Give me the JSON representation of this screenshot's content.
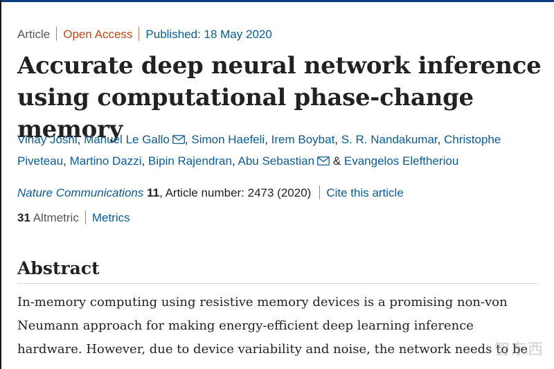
{
  "article_type": "Article",
  "access": "Open Access",
  "published": "Published: 18 May 2020",
  "title": "Accurate deep neural network inference using computational phase-change memory",
  "authors": [
    {
      "name": "Vinay Joshi",
      "mail": false
    },
    {
      "name": "Manuel Le Gallo",
      "mail": true
    },
    {
      "name": "Simon Haefeli",
      "mail": false
    },
    {
      "name": "Irem Boybat",
      "mail": false
    },
    {
      "name": "S. R. Nandakumar",
      "mail": false
    },
    {
      "name": "Christophe Piveteau",
      "mail": false
    },
    {
      "name": "Martino Dazzi",
      "mail": false
    },
    {
      "name": "Bipin Rajendran",
      "mail": false
    },
    {
      "name": "Abu Sebastian",
      "mail": true
    },
    {
      "name": "Evangelos Eleftheriou",
      "mail": false
    }
  ],
  "author_conjunction": "&",
  "journal": {
    "name": "Nature Communications",
    "volume": "11",
    "rest": ", Article number: 2473 (2020)",
    "cite_label": "Cite this article"
  },
  "metrics": {
    "altmetric_count": "31",
    "altmetric_label": "Altmetric",
    "metrics_label": "Metrics"
  },
  "abstract": {
    "heading": "Abstract",
    "lines": [
      "In-memory computing using resistive memory devices is a promising non-von",
      "Neumann approach for making energy-efficient deep learning inference",
      "hardware. However, due to device variability and noise, the network needs to be"
    ]
  },
  "watermark": "智东西",
  "colors": {
    "link": "#0b5c94",
    "open_access": "#c5461a",
    "separator": "#c47a4e",
    "text": "#222222"
  },
  "icons": {
    "mail": "mail-icon"
  }
}
